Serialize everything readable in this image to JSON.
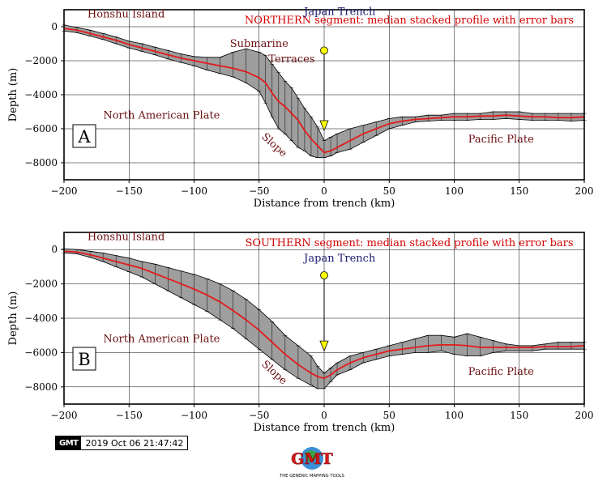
{
  "colors": {
    "profile": "#e31a1c",
    "envelope_fill": "#9e9e9e",
    "error_bar": "#000000",
    "label_dark_red": "#6b0f0f",
    "title_red": "#d40000",
    "trench_label": "#1a1a6e",
    "marker": "#ffff00"
  },
  "chart_data": [
    {
      "panel_label": "A",
      "type": "line",
      "title": "NORTHERN segment: median stacked profile with error bars",
      "xlabel": "Distance from trench (km)",
      "ylabel": "Depth (m)",
      "xlim": [
        -200,
        200
      ],
      "ylim": [
        -9000,
        1000
      ],
      "x_ticks": [
        -200,
        -150,
        -100,
        -50,
        0,
        50,
        100,
        150,
        200
      ],
      "x_tick_labels": [
        "−200",
        "−150",
        "−100",
        "−50",
        "0",
        "50",
        "100",
        "150",
        "200"
      ],
      "y_ticks": [
        0,
        -2000,
        -4000,
        -6000,
        -8000
      ],
      "y_tick_labels": [
        "0",
        "−2000",
        "−4000",
        "−6000",
        "−8000"
      ],
      "grid": true,
      "annotations": [
        {
          "text": "Honshu Island",
          "x": -182,
          "y": 550
        },
        {
          "text": "Submarine",
          "x": -50,
          "y": -1200
        },
        {
          "text": "Terraces",
          "x": -25,
          "y": -2100
        },
        {
          "text": "North American Plate",
          "x": -125,
          "y": -5400
        },
        {
          "text": "Slope",
          "x": -40,
          "y": -7100,
          "rotate": 42
        },
        {
          "text": "Pacific Plate",
          "x": 136,
          "y": -6800
        },
        {
          "text": "Japan Trench",
          "x": 12,
          "y": 700
        }
      ],
      "trench_marker": {
        "x": 0,
        "y_from": -1400,
        "y_to": -6000
      },
      "series": [
        {
          "x": [
            -200,
            -190,
            -180,
            -170,
            -160,
            -150,
            -140,
            -130,
            -120,
            -110,
            -100,
            -90,
            -80,
            -70,
            -60,
            -50,
            -45,
            -40,
            -35,
            -30,
            -25,
            -20,
            -15,
            -10,
            -5,
            0,
            5,
            10,
            20,
            30,
            40,
            50,
            60,
            70,
            80,
            90,
            100,
            110,
            120,
            130,
            140,
            150,
            160,
            170,
            180,
            190,
            200
          ],
          "y": [
            -100,
            -200,
            -400,
            -600,
            -800,
            -1050,
            -1250,
            -1450,
            -1650,
            -1850,
            -2000,
            -2150,
            -2300,
            -2450,
            -2650,
            -3000,
            -3300,
            -3900,
            -4400,
            -4700,
            -5100,
            -5500,
            -6100,
            -6600,
            -7000,
            -7400,
            -7300,
            -7100,
            -6700,
            -6300,
            -6000,
            -5700,
            -5550,
            -5450,
            -5400,
            -5350,
            -5300,
            -5300,
            -5250,
            -5250,
            -5200,
            -5250,
            -5300,
            -5300,
            -5350,
            -5350,
            -5300
          ],
          "upper": [
            100,
            -50,
            -200,
            -400,
            -600,
            -850,
            -1000,
            -1200,
            -1400,
            -1600,
            -1750,
            -1800,
            -1800,
            -1500,
            -1300,
            -1500,
            -1700,
            -2200,
            -2700,
            -3200,
            -3600,
            -4200,
            -4800,
            -5300,
            -5900,
            -6700,
            -6500,
            -6300,
            -6000,
            -5800,
            -5600,
            -5400,
            -5300,
            -5300,
            -5200,
            -5200,
            -5100,
            -5100,
            -5100,
            -5000,
            -5000,
            -5000,
            -5100,
            -5100,
            -5100,
            -5100,
            -5100
          ],
          "lower": [
            -250,
            -350,
            -550,
            -750,
            -1000,
            -1250,
            -1450,
            -1650,
            -1900,
            -2100,
            -2300,
            -2550,
            -2750,
            -2950,
            -3300,
            -3800,
            -4500,
            -5300,
            -6000,
            -6300,
            -6700,
            -7100,
            -7300,
            -7600,
            -7700,
            -7700,
            -7600,
            -7400,
            -7200,
            -6800,
            -6400,
            -6000,
            -5800,
            -5600,
            -5550,
            -5500,
            -5500,
            -5500,
            -5450,
            -5450,
            -5400,
            -5450,
            -5500,
            -5500,
            -5500,
            -5550,
            -5500
          ]
        }
      ]
    },
    {
      "panel_label": "B",
      "type": "line",
      "title": "SOUTHERN segment: median stacked profile with error bars",
      "xlabel": "Distance from trench (km)",
      "ylabel": "Depth (m)",
      "xlim": [
        -200,
        200
      ],
      "ylim": [
        -9000,
        1000
      ],
      "x_ticks": [
        -200,
        -150,
        -100,
        -50,
        0,
        50,
        100,
        150,
        200
      ],
      "x_tick_labels": [
        "−200",
        "−150",
        "−100",
        "−50",
        "0",
        "50",
        "100",
        "150",
        "200"
      ],
      "y_ticks": [
        0,
        -2000,
        -4000,
        -6000,
        -8000
      ],
      "y_tick_labels": [
        "0",
        "−2000",
        "−4000",
        "−6000",
        "−8000"
      ],
      "grid": true,
      "annotations": [
        {
          "text": "Honshu Island",
          "x": -182,
          "y": 550
        },
        {
          "text": "North American Plate",
          "x": -125,
          "y": -5400
        },
        {
          "text": "Slope",
          "x": -40,
          "y": -7300,
          "rotate": 42
        },
        {
          "text": "Pacific Plate",
          "x": 136,
          "y": -7300
        },
        {
          "text": "Japan Trench",
          "x": 12,
          "y": -700
        }
      ],
      "trench_marker": {
        "x": 0,
        "y_from": -1500,
        "y_to": -5800
      },
      "series": [
        {
          "x": [
            -200,
            -190,
            -180,
            -170,
            -160,
            -150,
            -140,
            -130,
            -120,
            -110,
            -100,
            -90,
            -80,
            -70,
            -60,
            -50,
            -40,
            -30,
            -20,
            -10,
            -5,
            0,
            5,
            10,
            20,
            30,
            40,
            50,
            60,
            70,
            80,
            90,
            100,
            110,
            120,
            130,
            140,
            150,
            160,
            170,
            180,
            190,
            200
          ],
          "y": [
            -100,
            -150,
            -300,
            -500,
            -700,
            -900,
            -1100,
            -1400,
            -1700,
            -2000,
            -2300,
            -2650,
            -3050,
            -3550,
            -4100,
            -4700,
            -5400,
            -6100,
            -6700,
            -7200,
            -7400,
            -7500,
            -7300,
            -7000,
            -6600,
            -6300,
            -6100,
            -5900,
            -5800,
            -5700,
            -5600,
            -5550,
            -5550,
            -5600,
            -5700,
            -5700,
            -5700,
            -5700,
            -5700,
            -5650,
            -5650,
            -5650,
            -5600
          ],
          "upper": [
            50,
            0,
            -100,
            -200,
            -350,
            -500,
            -700,
            -850,
            -1050,
            -1250,
            -1450,
            -1700,
            -2000,
            -2400,
            -2900,
            -3500,
            -4200,
            -5000,
            -5600,
            -6200,
            -6800,
            -7200,
            -6900,
            -6600,
            -6200,
            -6000,
            -5800,
            -5600,
            -5400,
            -5200,
            -5000,
            -5000,
            -5100,
            -4900,
            -5100,
            -5300,
            -5500,
            -5600,
            -5600,
            -5500,
            -5400,
            -5400,
            -5400
          ],
          "lower": [
            -200,
            -250,
            -450,
            -700,
            -1000,
            -1300,
            -1600,
            -2000,
            -2400,
            -2800,
            -3200,
            -3600,
            -4100,
            -4600,
            -5200,
            -5800,
            -6400,
            -7000,
            -7500,
            -7900,
            -8100,
            -8100,
            -7700,
            -7300,
            -7000,
            -6600,
            -6400,
            -6200,
            -6100,
            -6000,
            -6000,
            -5900,
            -6100,
            -6200,
            -6200,
            -6000,
            -5900,
            -5900,
            -5900,
            -5800,
            -5800,
            -5800,
            -5800
          ]
        }
      ]
    }
  ],
  "timestamp": {
    "logo_text": "GMT",
    "text": "2019 Oct 06 21:47:42"
  },
  "logo": {
    "big": "GMT",
    "caption": "THE GENERIC MAPPING TOOLS"
  }
}
